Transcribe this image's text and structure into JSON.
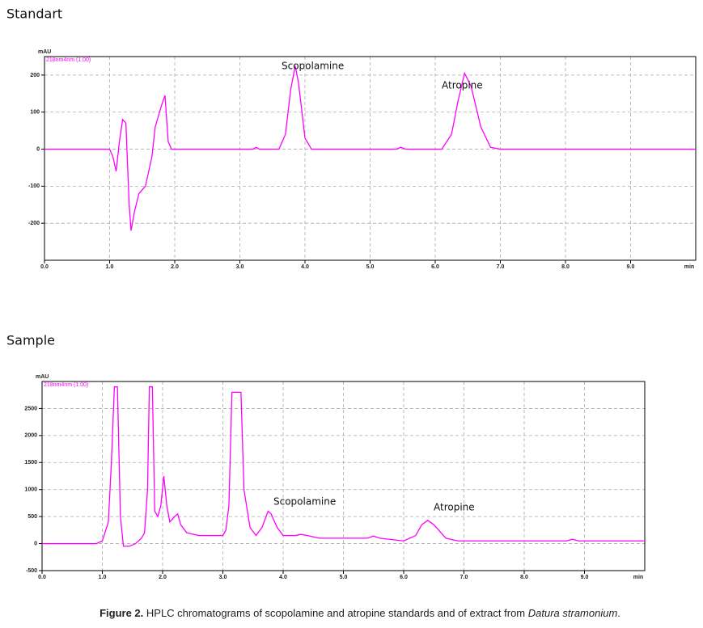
{
  "chart_data": [
    {
      "type": "line",
      "title": "Standart",
      "y_label": "mAU",
      "x_label": "min",
      "x": [
        0,
        1.0,
        1.05,
        1.1,
        1.15,
        1.2,
        1.25,
        1.3,
        1.33,
        1.38,
        1.45,
        1.55,
        1.65,
        1.7,
        1.8,
        1.85,
        1.9,
        1.95,
        2.0,
        3.2,
        3.25,
        3.3,
        3.6,
        3.7,
        3.78,
        3.85,
        3.9,
        4.0,
        4.1,
        5.4,
        5.47,
        5.55,
        6.1,
        6.25,
        6.35,
        6.45,
        6.55,
        6.7,
        6.85,
        7.0,
        10.0
      ],
      "series": [
        {
          "name": "218nm4nm (1.00)",
          "color": "#ff00ff",
          "values": [
            0,
            0,
            -20,
            -60,
            20,
            80,
            70,
            -150,
            -220,
            -170,
            -120,
            -100,
            -20,
            60,
            120,
            145,
            20,
            0,
            0,
            0,
            5,
            0,
            0,
            40,
            160,
            225,
            180,
            30,
            0,
            0,
            5,
            0,
            0,
            40,
            130,
            205,
            170,
            60,
            5,
            0,
            0
          ]
        }
      ],
      "annotations": [
        "Scopolamine",
        "Atropine"
      ],
      "xlim": [
        0,
        10
      ],
      "ylim": [
        -300,
        250
      ],
      "xticks": [
        {
          "value": 0,
          "label": "0.0"
        },
        {
          "value": 1,
          "label": "1.0"
        },
        {
          "value": 2,
          "label": "2.0"
        },
        {
          "value": 3,
          "label": "3.0"
        },
        {
          "value": 4,
          "label": "4.0"
        },
        {
          "value": 5,
          "label": "5.0"
        },
        {
          "value": 6,
          "label": "6.0"
        },
        {
          "value": 7,
          "label": "7.0"
        },
        {
          "value": 8,
          "label": "8.0"
        },
        {
          "value": 9,
          "label": "9.0"
        }
      ],
      "yticks": [
        -200,
        -100,
        0,
        100,
        200
      ],
      "grid": true
    },
    {
      "type": "line",
      "title": "Sample",
      "y_label": "mAU",
      "x_label": "min",
      "x": [
        0,
        0.9,
        1.0,
        1.1,
        1.15,
        1.2,
        1.25,
        1.3,
        1.35,
        1.45,
        1.55,
        1.65,
        1.7,
        1.75,
        1.78,
        1.83,
        1.87,
        1.92,
        1.97,
        2.02,
        2.07,
        2.12,
        2.2,
        2.25,
        2.3,
        2.4,
        2.6,
        3.0,
        3.05,
        3.1,
        3.15,
        3.3,
        3.35,
        3.45,
        3.55,
        3.65,
        3.75,
        3.8,
        3.9,
        4.0,
        4.2,
        4.3,
        4.4,
        4.6,
        5.0,
        5.4,
        5.5,
        5.6,
        6.0,
        6.2,
        6.3,
        6.4,
        6.5,
        6.7,
        6.9,
        8.7,
        8.8,
        8.9,
        10.0
      ],
      "series": [
        {
          "name": "218nm4nm (1.00)",
          "color": "#ff00ff",
          "values": [
            0,
            0,
            50,
            400,
            1500,
            2900,
            2900,
            500,
            -50,
            -50,
            0,
            100,
            200,
            1000,
            2900,
            2900,
            600,
            500,
            700,
            1250,
            700,
            400,
            500,
            550,
            350,
            200,
            150,
            150,
            250,
            700,
            2800,
            2800,
            1000,
            300,
            150,
            300,
            600,
            550,
            300,
            150,
            150,
            170,
            150,
            100,
            100,
            100,
            140,
            100,
            50,
            150,
            350,
            430,
            350,
            100,
            50,
            50,
            80,
            50,
            50
          ]
        }
      ],
      "annotations": [
        "Scopolamine",
        "Atropine"
      ],
      "xlim": [
        0,
        10
      ],
      "ylim": [
        -500,
        3000
      ],
      "xticks": [
        {
          "value": 0,
          "label": "0.0"
        },
        {
          "value": 1,
          "label": "1.0"
        },
        {
          "value": 2,
          "label": "2.0"
        },
        {
          "value": 3,
          "label": "3.0"
        },
        {
          "value": 4,
          "label": "4.0"
        },
        {
          "value": 5,
          "label": "5.0"
        },
        {
          "value": 6,
          "label": "6.0"
        },
        {
          "value": 7,
          "label": "7.0"
        },
        {
          "value": 8,
          "label": "8.0"
        },
        {
          "value": 9,
          "label": "9.0"
        }
      ],
      "yticks": [
        -500,
        0,
        500,
        1000,
        1500,
        2000,
        2500
      ],
      "grid": true
    }
  ],
  "caption": {
    "label": "Figure 2.",
    "text": "HPLC chromatograms of scopolamine  and atropine  standards and of extract from ",
    "species": "Datura stramonium",
    "end": "."
  }
}
